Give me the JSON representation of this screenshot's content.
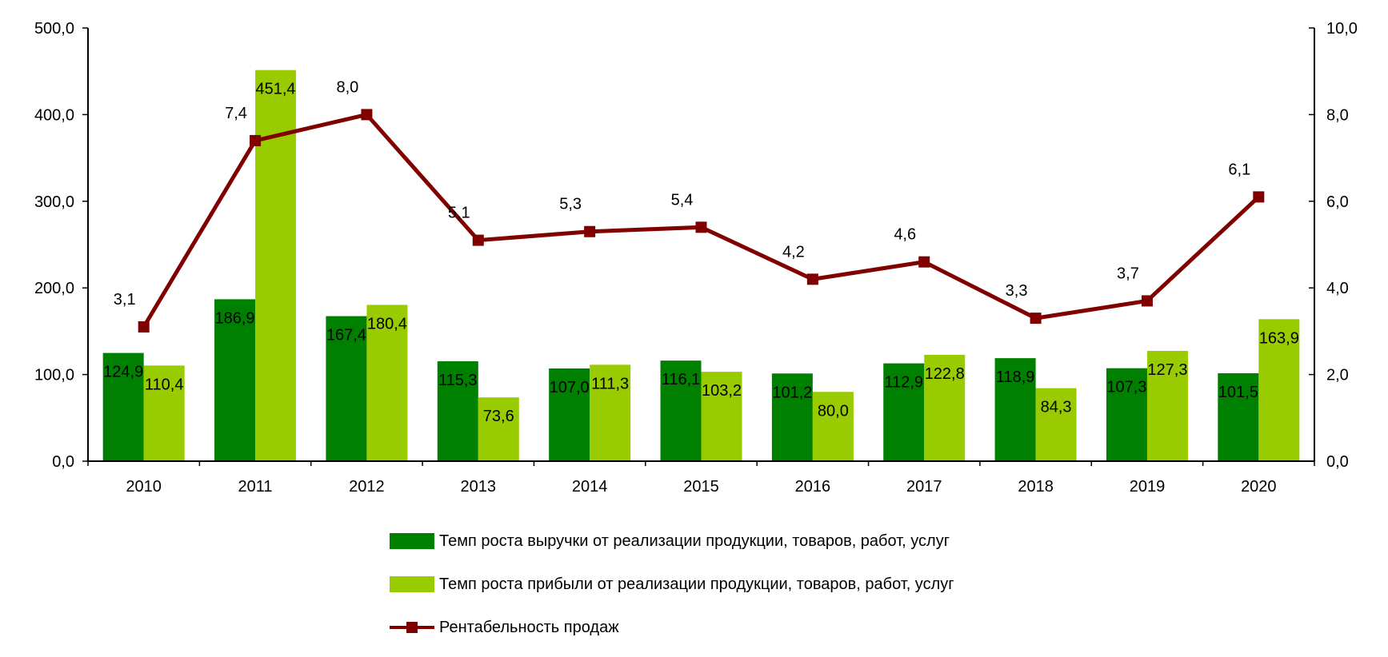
{
  "chart_data": {
    "type": "bar",
    "categories": [
      "2010",
      "2011",
      "2012",
      "2013",
      "2014",
      "2015",
      "2016",
      "2017",
      "2018",
      "2019",
      "2020"
    ],
    "series": [
      {
        "name": "Темп роста выручки от реализации продукции, товаров, работ, услуг",
        "type": "bar",
        "axis": "left",
        "color": "#008000",
        "values": [
          124.9,
          186.9,
          167.4,
          115.3,
          107.0,
          116.1,
          101.2,
          112.9,
          118.9,
          107.3,
          101.5
        ],
        "labels": [
          "124,9",
          "186,9",
          "167,4",
          "115,3",
          "107,0",
          "116,1",
          "101,2",
          "112,9",
          "118,9",
          "107,3",
          "101,5"
        ]
      },
      {
        "name": "Темп роста прибыли от реализации продукции, товаров, работ, услуг",
        "type": "bar",
        "axis": "left",
        "color": "#99CC00",
        "values": [
          110.4,
          451.4,
          180.4,
          73.6,
          111.3,
          103.2,
          80.0,
          122.8,
          84.3,
          127.3,
          163.9
        ],
        "labels": [
          "110,4",
          "451,4",
          "180,4",
          "73,6",
          "111,3",
          "103,2",
          "80,0",
          "122,8",
          "84,3",
          "127,3",
          "163,9"
        ]
      },
      {
        "name": "Рентабельность продаж",
        "type": "line",
        "axis": "right",
        "color": "#800000",
        "values": [
          3.1,
          7.4,
          8.0,
          5.1,
          5.3,
          5.4,
          4.2,
          4.6,
          3.3,
          3.7,
          6.1
        ],
        "labels": [
          "3,1",
          "7,4",
          "8,0",
          "5,1",
          "5,3",
          "5,4",
          "4,2",
          "4,6",
          "3,3",
          "3,7",
          "6,1"
        ]
      }
    ],
    "y_left": {
      "ylim": [
        0,
        500
      ],
      "ticks": [
        "0,0",
        "100,0",
        "200,0",
        "300,0",
        "400,0",
        "500,0"
      ]
    },
    "y_right": {
      "ylim": [
        0,
        10
      ],
      "ticks": [
        "0,0",
        "2,0",
        "4,0",
        "6,0",
        "8,0",
        "10,0"
      ]
    },
    "grid": false,
    "legend_placement": "bottom"
  }
}
